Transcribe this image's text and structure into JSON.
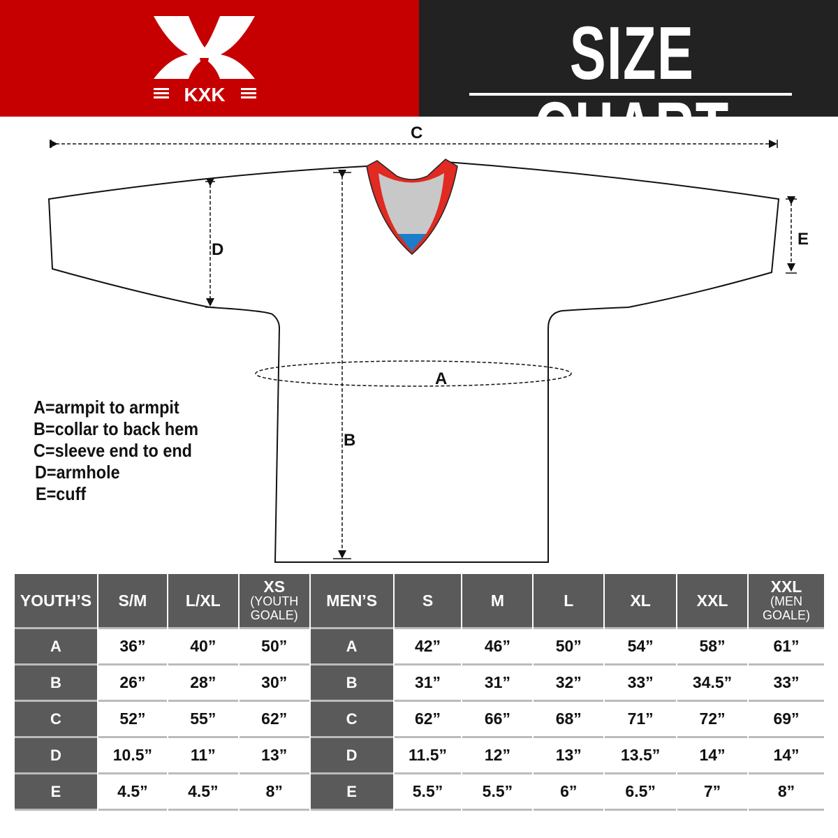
{
  "header": {
    "title": "SIZE CHART",
    "logo_text": "KXK",
    "brand_color": "#c60000"
  },
  "diagram": {
    "labels": {
      "a": "A",
      "b": "B",
      "c": "C",
      "d": "D",
      "e": "E"
    }
  },
  "legend": [
    "A=armpit to armpit",
    "B=collar to back hem",
    "C=sleeve end to end",
    "D=armhole",
    "E=cuff"
  ],
  "table": {
    "youth": {
      "header": "YOUTH’S",
      "columns": [
        {
          "main": "S/M",
          "sub": ""
        },
        {
          "main": "L/XL",
          "sub": ""
        },
        {
          "main": "XS",
          "sub": "(YOUTH GOALE)"
        }
      ],
      "rows": [
        {
          "label": "A",
          "values": [
            "36”",
            "40”",
            "50”"
          ]
        },
        {
          "label": "B",
          "values": [
            "26”",
            "28”",
            "30”"
          ]
        },
        {
          "label": "C",
          "values": [
            "52”",
            "55”",
            "62”"
          ]
        },
        {
          "label": "D",
          "values": [
            "10.5”",
            "11”",
            "13”"
          ]
        },
        {
          "label": "E",
          "values": [
            "4.5”",
            "4.5”",
            "8”"
          ]
        }
      ]
    },
    "men": {
      "header": "MEN’S",
      "columns": [
        {
          "main": "S",
          "sub": ""
        },
        {
          "main": "M",
          "sub": ""
        },
        {
          "main": "L",
          "sub": ""
        },
        {
          "main": "XL",
          "sub": ""
        },
        {
          "main": "XXL",
          "sub": ""
        },
        {
          "main": "XXL",
          "sub": "(MEN GOALE)"
        }
      ],
      "rows": [
        {
          "label": "A",
          "values": [
            "42”",
            "46”",
            "50”",
            "54”",
            "58”",
            "61”"
          ]
        },
        {
          "label": "B",
          "values": [
            "31”",
            "31”",
            "32”",
            "33”",
            "34.5”",
            "33”"
          ]
        },
        {
          "label": "C",
          "values": [
            "62”",
            "66”",
            "68”",
            "71”",
            "72”",
            "69”"
          ]
        },
        {
          "label": "D",
          "values": [
            "11.5”",
            "12”",
            "13”",
            "13.5”",
            "14”",
            "14”"
          ]
        },
        {
          "label": "E",
          "values": [
            "5.5”",
            "5.5”",
            "6”",
            "6.5”",
            "7”",
            "8”"
          ]
        }
      ]
    }
  }
}
